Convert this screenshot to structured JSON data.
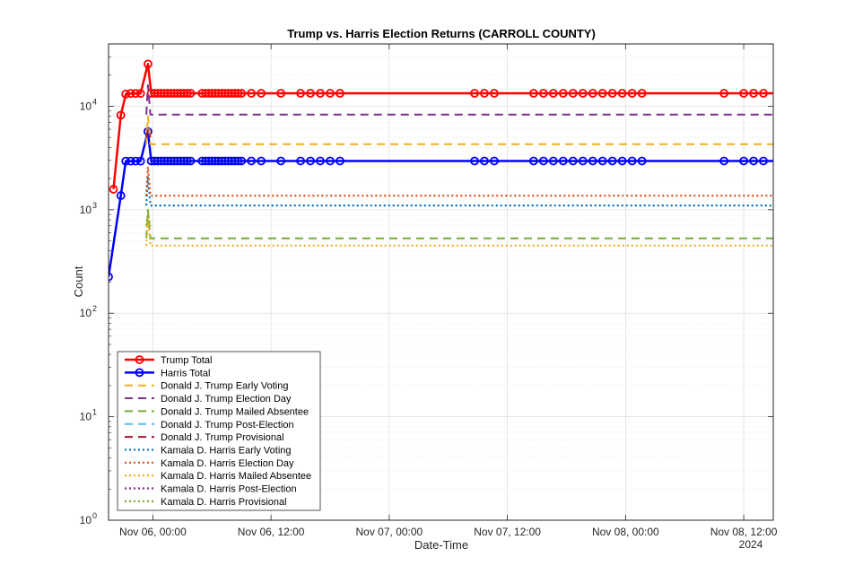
{
  "chart_data": {
    "type": "line",
    "title": "Trump vs. Harris Election Returns (CARROLL COUNTY)",
    "xlabel": "Date-Time",
    "ylabel": "Count",
    "yscale": "log",
    "ylim": [
      1,
      40000
    ],
    "xlim": [
      "2024-11-05T19:30",
      "2024-11-08T15:00"
    ],
    "grid": true,
    "legend_position": "bottom-left",
    "x_ticks": [
      {
        "label": "Nov 06, 00:00",
        "x": "2024-11-06T00:00"
      },
      {
        "label": "Nov 06, 12:00",
        "x": "2024-11-06T12:00"
      },
      {
        "label": "Nov 07, 00:00",
        "x": "2024-11-07T00:00"
      },
      {
        "label": "Nov 07, 12:00",
        "x": "2024-11-07T12:00"
      },
      {
        "label": "Nov 08, 00:00",
        "x": "2024-11-08T00:00"
      },
      {
        "label": "Nov 08, 12:00",
        "x": "2024-11-08T12:00"
      }
    ],
    "x_year_label": "2024",
    "y_ticks": [
      {
        "value": 1,
        "base": "10",
        "exp": "0"
      },
      {
        "value": 10,
        "base": "10",
        "exp": "1"
      },
      {
        "value": 100,
        "base": "10",
        "exp": "2"
      },
      {
        "value": 1000,
        "base": "10",
        "exp": "3"
      },
      {
        "value": 10000,
        "base": "10",
        "exp": "4"
      }
    ],
    "series": [
      {
        "name": "Trump Total",
        "color": "#ff0000",
        "style": "solid",
        "width": 2.5,
        "marker": "circle",
        "points": [
          [
            "2024-11-05T20:00",
            1580
          ],
          [
            "2024-11-05T20:45",
            8200
          ],
          [
            "2024-11-05T21:15",
            13100
          ],
          [
            "2024-11-05T21:45",
            13300
          ],
          [
            "2024-11-05T22:15",
            13300
          ],
          [
            "2024-11-05T22:45",
            13300
          ],
          [
            "2024-11-05T23:30",
            25600
          ],
          [
            "2024-11-05T23:50",
            13350
          ],
          [
            "2024-11-06T00:10",
            13350
          ],
          [
            "2024-11-06T00:30",
            13350
          ],
          [
            "2024-11-06T00:50",
            13350
          ],
          [
            "2024-11-06T01:10",
            13350
          ],
          [
            "2024-11-06T01:30",
            13350
          ],
          [
            "2024-11-06T01:50",
            13350
          ],
          [
            "2024-11-06T02:10",
            13350
          ],
          [
            "2024-11-06T02:30",
            13350
          ],
          [
            "2024-11-06T02:50",
            13350
          ],
          [
            "2024-11-06T03:10",
            13350
          ],
          [
            "2024-11-06T03:30",
            13350
          ],
          [
            "2024-11-06T03:50",
            13350
          ],
          [
            "2024-11-06T05:00",
            13350
          ],
          [
            "2024-11-06T05:20",
            13350
          ],
          [
            "2024-11-06T05:40",
            13350
          ],
          [
            "2024-11-06T06:00",
            13350
          ],
          [
            "2024-11-06T06:20",
            13350
          ],
          [
            "2024-11-06T06:40",
            13350
          ],
          [
            "2024-11-06T07:00",
            13350
          ],
          [
            "2024-11-06T07:20",
            13350
          ],
          [
            "2024-11-06T07:40",
            13350
          ],
          [
            "2024-11-06T08:00",
            13350
          ],
          [
            "2024-11-06T08:20",
            13350
          ],
          [
            "2024-11-06T08:40",
            13350
          ],
          [
            "2024-11-06T09:00",
            13350
          ],
          [
            "2024-11-06T10:00",
            13350
          ],
          [
            "2024-11-06T11:00",
            13350
          ],
          [
            "2024-11-06T13:00",
            13350
          ],
          [
            "2024-11-06T15:00",
            13350
          ],
          [
            "2024-11-06T16:00",
            13350
          ],
          [
            "2024-11-06T17:00",
            13350
          ],
          [
            "2024-11-06T18:00",
            13350
          ],
          [
            "2024-11-06T19:00",
            13350
          ],
          [
            "2024-11-07T08:40",
            13350
          ],
          [
            "2024-11-07T09:40",
            13350
          ],
          [
            "2024-11-07T10:40",
            13350
          ],
          [
            "2024-11-07T14:40",
            13350
          ],
          [
            "2024-11-07T15:40",
            13350
          ],
          [
            "2024-11-07T16:40",
            13350
          ],
          [
            "2024-11-07T17:40",
            13350
          ],
          [
            "2024-11-07T18:40",
            13350
          ],
          [
            "2024-11-07T19:40",
            13350
          ],
          [
            "2024-11-07T20:40",
            13350
          ],
          [
            "2024-11-07T21:40",
            13350
          ],
          [
            "2024-11-07T22:40",
            13350
          ],
          [
            "2024-11-07T23:40",
            13350
          ],
          [
            "2024-11-08T00:40",
            13350
          ],
          [
            "2024-11-08T01:40",
            13350
          ],
          [
            "2024-11-08T10:00",
            13350
          ],
          [
            "2024-11-08T12:00",
            13350
          ],
          [
            "2024-11-08T13:00",
            13350
          ],
          [
            "2024-11-08T14:00",
            13350
          ],
          [
            "2024-11-08T15:30",
            13350
          ]
        ]
      },
      {
        "name": "Harris Total",
        "color": "#0000ff",
        "style": "solid",
        "width": 2.5,
        "marker": "circle",
        "points": [
          [
            "2024-11-05T19:30",
            225
          ],
          [
            "2024-11-05T20:45",
            1370
          ],
          [
            "2024-11-05T21:15",
            2950
          ],
          [
            "2024-11-05T21:45",
            2950
          ],
          [
            "2024-11-05T22:15",
            2950
          ],
          [
            "2024-11-05T22:45",
            2950
          ],
          [
            "2024-11-05T23:30",
            5700
          ],
          [
            "2024-11-05T23:50",
            2960
          ],
          [
            "2024-11-06T00:10",
            2960
          ],
          [
            "2024-11-06T00:30",
            2960
          ],
          [
            "2024-11-06T00:50",
            2960
          ],
          [
            "2024-11-06T01:10",
            2960
          ],
          [
            "2024-11-06T01:30",
            2960
          ],
          [
            "2024-11-06T01:50",
            2960
          ],
          [
            "2024-11-06T02:10",
            2960
          ],
          [
            "2024-11-06T02:30",
            2960
          ],
          [
            "2024-11-06T02:50",
            2960
          ],
          [
            "2024-11-06T03:10",
            2960
          ],
          [
            "2024-11-06T03:30",
            2960
          ],
          [
            "2024-11-06T03:50",
            2960
          ],
          [
            "2024-11-06T05:00",
            2960
          ],
          [
            "2024-11-06T05:20",
            2960
          ],
          [
            "2024-11-06T05:40",
            2960
          ],
          [
            "2024-11-06T06:00",
            2960
          ],
          [
            "2024-11-06T06:20",
            2960
          ],
          [
            "2024-11-06T06:40",
            2960
          ],
          [
            "2024-11-06T07:00",
            2960
          ],
          [
            "2024-11-06T07:20",
            2960
          ],
          [
            "2024-11-06T07:40",
            2960
          ],
          [
            "2024-11-06T08:00",
            2960
          ],
          [
            "2024-11-06T08:20",
            2960
          ],
          [
            "2024-11-06T08:40",
            2960
          ],
          [
            "2024-11-06T09:00",
            2960
          ],
          [
            "2024-11-06T10:00",
            2960
          ],
          [
            "2024-11-06T11:00",
            2960
          ],
          [
            "2024-11-06T13:00",
            2960
          ],
          [
            "2024-11-06T15:00",
            2960
          ],
          [
            "2024-11-06T16:00",
            2960
          ],
          [
            "2024-11-06T17:00",
            2960
          ],
          [
            "2024-11-06T18:00",
            2960
          ],
          [
            "2024-11-06T19:00",
            2960
          ],
          [
            "2024-11-07T08:40",
            2960
          ],
          [
            "2024-11-07T09:40",
            2960
          ],
          [
            "2024-11-07T10:40",
            2960
          ],
          [
            "2024-11-07T14:40",
            2960
          ],
          [
            "2024-11-07T15:40",
            2960
          ],
          [
            "2024-11-07T16:40",
            2960
          ],
          [
            "2024-11-07T17:40",
            2960
          ],
          [
            "2024-11-07T18:40",
            2960
          ],
          [
            "2024-11-07T19:40",
            2960
          ],
          [
            "2024-11-07T20:40",
            2960
          ],
          [
            "2024-11-07T21:40",
            2960
          ],
          [
            "2024-11-07T22:40",
            2960
          ],
          [
            "2024-11-07T23:40",
            2960
          ],
          [
            "2024-11-08T00:40",
            2960
          ],
          [
            "2024-11-08T01:40",
            2960
          ],
          [
            "2024-11-08T10:00",
            2960
          ],
          [
            "2024-11-08T12:00",
            2960
          ],
          [
            "2024-11-08T13:00",
            2960
          ],
          [
            "2024-11-08T14:00",
            2960
          ],
          [
            "2024-11-08T15:30",
            2960
          ]
        ]
      },
      {
        "name": "Donald J. Trump Early Voting",
        "color": "#edb120",
        "style": "dashed",
        "width": 2,
        "points": [
          [
            "2024-11-05T23:20",
            4300
          ],
          [
            "2024-11-05T23:30",
            8000
          ],
          [
            "2024-11-05T23:45",
            4300
          ],
          [
            "2024-11-08T15:30",
            4300
          ]
        ]
      },
      {
        "name": "Donald J. Trump Election Day",
        "color": "#7e2f8e",
        "style": "dashed",
        "width": 2,
        "points": [
          [
            "2024-11-05T23:20",
            8300
          ],
          [
            "2024-11-05T23:30",
            16000
          ],
          [
            "2024-11-05T23:45",
            8300
          ],
          [
            "2024-11-08T15:30",
            8300
          ]
        ]
      },
      {
        "name": "Donald J. Trump Mailed Absentee",
        "color": "#77ac30",
        "style": "dashed",
        "width": 2,
        "points": [
          [
            "2024-11-05T23:20",
            530
          ],
          [
            "2024-11-05T23:30",
            1000
          ],
          [
            "2024-11-05T23:45",
            530
          ],
          [
            "2024-11-08T15:30",
            530
          ]
        ]
      },
      {
        "name": "Donald J. Trump Post-Election",
        "color": "#4dbeee",
        "style": "dashed",
        "width": 2,
        "points": []
      },
      {
        "name": "Donald J. Trump Provisional",
        "color": "#a2142f",
        "style": "dashed",
        "width": 2,
        "points": [
          [
            "2024-11-05T23:20",
            5000
          ],
          [
            "2024-11-05T23:30",
            6000
          ],
          [
            "2024-11-05T23:45",
            5000
          ]
        ]
      },
      {
        "name": "Kamala D. Harris Early Voting",
        "color": "#0072bd",
        "style": "dotted",
        "width": 2.2,
        "points": [
          [
            "2024-11-05T23:20",
            1100
          ],
          [
            "2024-11-05T23:30",
            2100
          ],
          [
            "2024-11-05T23:45",
            1100
          ],
          [
            "2024-11-08T15:30",
            1100
          ]
        ]
      },
      {
        "name": "Kamala D. Harris Election Day",
        "color": "#d95319",
        "style": "dotted",
        "width": 2.2,
        "points": [
          [
            "2024-11-05T23:20",
            1370
          ],
          [
            "2024-11-05T23:30",
            2600
          ],
          [
            "2024-11-05T23:45",
            1370
          ],
          [
            "2024-11-08T15:30",
            1370
          ]
        ]
      },
      {
        "name": "Kamala D. Harris Mailed Absentee",
        "color": "#edb120",
        "style": "dotted",
        "width": 2.2,
        "points": [
          [
            "2024-11-05T23:20",
            450
          ],
          [
            "2024-11-05T23:30",
            850
          ],
          [
            "2024-11-05T23:45",
            450
          ],
          [
            "2024-11-08T15:30",
            450
          ]
        ]
      },
      {
        "name": "Kamala D. Harris Post-Election",
        "color": "#7e2f8e",
        "style": "dotted",
        "width": 2.2,
        "points": []
      },
      {
        "name": "Kamala D. Harris Provisional",
        "color": "#77ac30",
        "style": "dotted",
        "width": 2.2,
        "points": [
          [
            "2024-11-05T23:20",
            700
          ],
          [
            "2024-11-05T23:30",
            900
          ],
          [
            "2024-11-05T23:45",
            700
          ]
        ]
      }
    ]
  }
}
